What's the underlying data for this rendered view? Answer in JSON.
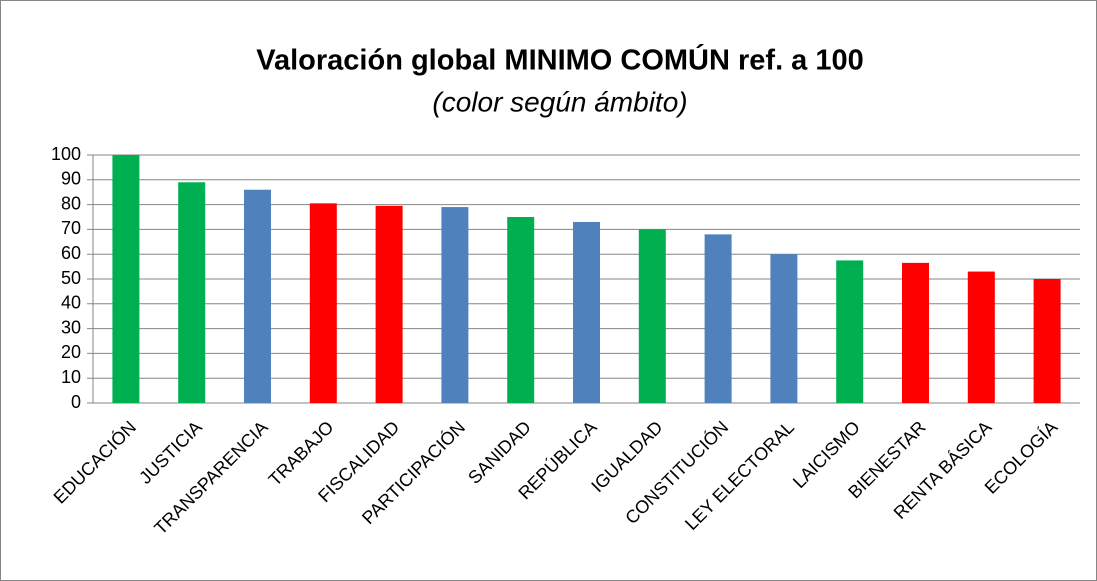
{
  "chart_data": {
    "type": "bar",
    "title": "Valoración global MINIMO COMÚN ref. a 100",
    "subtitle": "(color según ámbito)",
    "categories": [
      "EDUCACIÓN",
      "JUSTICIA",
      "TRANSPARENCIA",
      "TRABAJO",
      "FISCALIDAD",
      "PARTICIPACIÓN",
      "SANIDAD",
      "REPÚBLICA",
      "IGUALDAD",
      "CONSTITUCIÓN",
      "LEY ELECTORAL",
      "LAICISMO",
      "BIENESTAR",
      "RENTA BÁSICA",
      "ECOLOGÍA"
    ],
    "values": [
      100,
      89,
      86,
      80.5,
      79.5,
      79,
      75,
      73,
      70,
      68,
      60,
      57.5,
      56.5,
      53,
      50
    ],
    "colors": [
      "#00b050",
      "#00b050",
      "#4f81bd",
      "#ff0000",
      "#ff0000",
      "#4f81bd",
      "#00b050",
      "#4f81bd",
      "#00b050",
      "#4f81bd",
      "#4f81bd",
      "#00b050",
      "#ff0000",
      "#ff0000",
      "#ff0000"
    ],
    "ylim": [
      0,
      100
    ],
    "yticks": [
      0,
      10,
      20,
      30,
      40,
      50,
      60,
      70,
      80,
      90,
      100
    ],
    "grid": true
  }
}
